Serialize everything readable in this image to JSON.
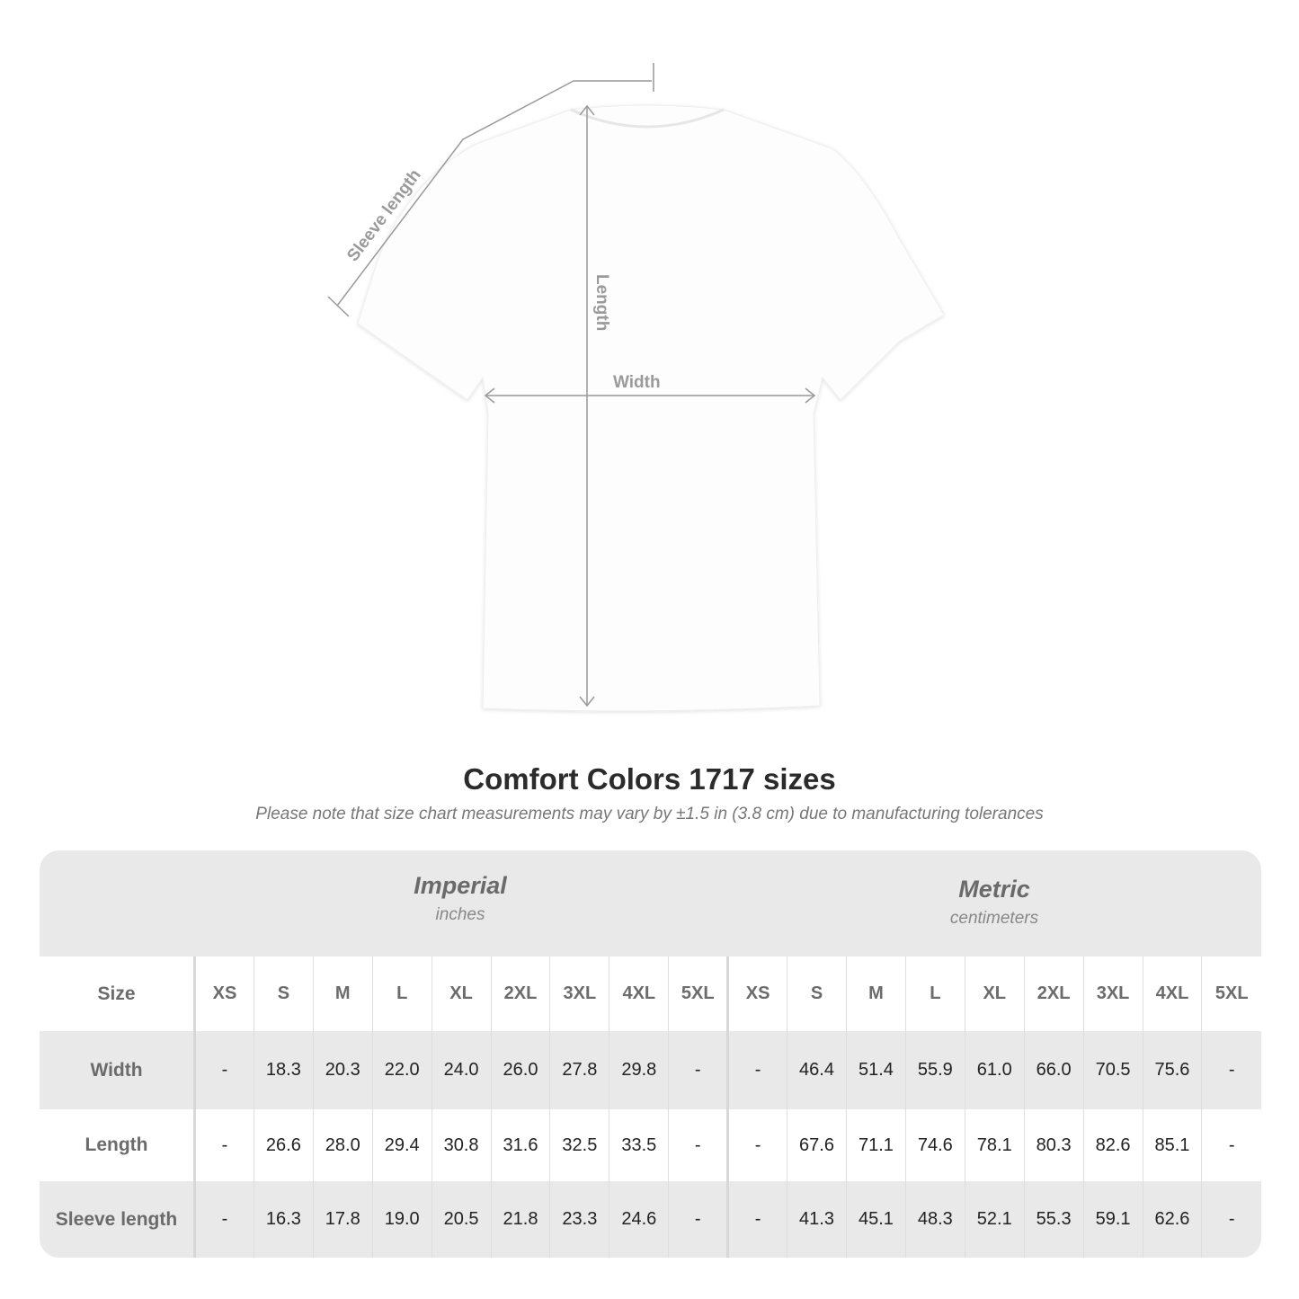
{
  "diagram": {
    "sleeve_label": "Sleeve length",
    "length_label": "Length",
    "width_label": "Width"
  },
  "title": "Comfort Colors 1717 sizes",
  "note": "Please note that size chart measurements may vary by ±1.5 in (3.8 cm) due to manufacturing tolerances",
  "table": {
    "imperial": {
      "name": "Imperial",
      "unit": "inches"
    },
    "metric": {
      "name": "Metric",
      "unit": "centimeters"
    },
    "size_label": "Size",
    "sizes": [
      "XS",
      "S",
      "M",
      "L",
      "XL",
      "2XL",
      "3XL",
      "4XL",
      "5XL"
    ],
    "rows": [
      {
        "label": "Width",
        "imperial": [
          "-",
          "18.3",
          "20.3",
          "22.0",
          "24.0",
          "26.0",
          "27.8",
          "29.8",
          "-"
        ],
        "metric": [
          "-",
          "46.4",
          "51.4",
          "55.9",
          "61.0",
          "66.0",
          "70.5",
          "75.6",
          "-"
        ]
      },
      {
        "label": "Length",
        "imperial": [
          "-",
          "26.6",
          "28.0",
          "29.4",
          "30.8",
          "31.6",
          "32.5",
          "33.5",
          "-"
        ],
        "metric": [
          "-",
          "67.6",
          "71.1",
          "74.6",
          "78.1",
          "80.3",
          "82.6",
          "85.1",
          "-"
        ]
      },
      {
        "label": "Sleeve length",
        "imperial": [
          "-",
          "16.3",
          "17.8",
          "19.0",
          "20.5",
          "21.8",
          "23.3",
          "24.6",
          "-"
        ],
        "metric": [
          "-",
          "41.3",
          "45.1",
          "48.3",
          "52.1",
          "55.3",
          "59.1",
          "62.6",
          "-"
        ]
      }
    ]
  }
}
